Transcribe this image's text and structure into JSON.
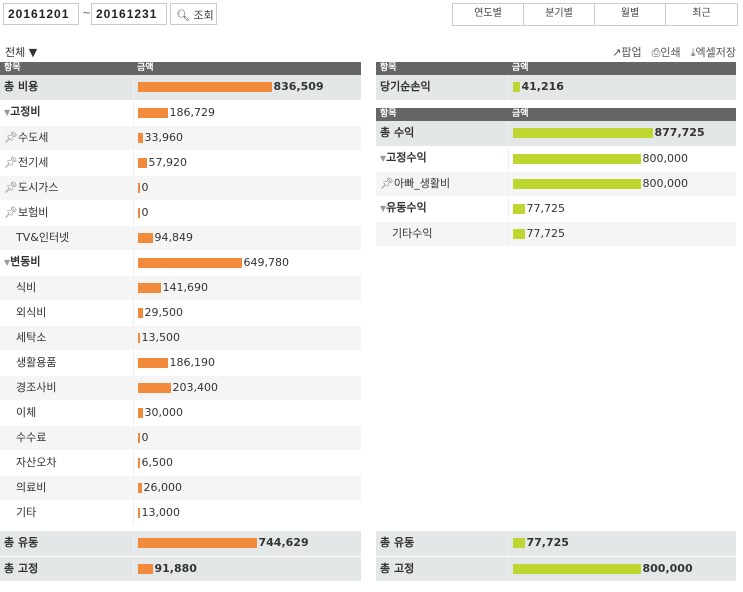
{
  "search": {
    "start": "20161201",
    "sep": "~",
    "end": "20161231",
    "button": "조회"
  },
  "period_tabs": [
    "연도별",
    "분기별",
    "월별",
    "최근"
  ],
  "filter": "전체 ▼",
  "tools": [
    "팝업",
    "인쇄",
    "엑셀저장"
  ],
  "headers": {
    "item": "항목",
    "amount": "금액"
  },
  "colors": {
    "expense": "#f28a3b",
    "income": "#bfd630"
  },
  "expense": {
    "rows": [
      {
        "label": "총 비용",
        "value": 836509,
        "text": "836,509",
        "type": "total"
      },
      {
        "label": "고정비",
        "value": 186729,
        "text": "186,729",
        "type": "group"
      },
      {
        "label": "수도세",
        "value": 33960,
        "text": "33,960",
        "type": "pin"
      },
      {
        "label": "전기세",
        "value": 57920,
        "text": "57,920",
        "type": "pin"
      },
      {
        "label": "도시가스",
        "value": 0,
        "text": "0",
        "type": "pin"
      },
      {
        "label": "보험비",
        "value": 0,
        "text": "0",
        "type": "pin"
      },
      {
        "label": "TV&인터넷",
        "value": 94849,
        "text": "94,849",
        "type": "item"
      },
      {
        "label": "변동비",
        "value": 649780,
        "text": "649,780",
        "type": "group"
      },
      {
        "label": "식비",
        "value": 141690,
        "text": "141,690",
        "type": "item"
      },
      {
        "label": "외식비",
        "value": 29500,
        "text": "29,500",
        "type": "item"
      },
      {
        "label": "세탁소",
        "value": 13500,
        "text": "13,500",
        "type": "item"
      },
      {
        "label": "생활용품",
        "value": 186190,
        "text": "186,190",
        "type": "item"
      },
      {
        "label": "경조사비",
        "value": 203400,
        "text": "203,400",
        "type": "item"
      },
      {
        "label": "이체",
        "value": 30000,
        "text": "30,000",
        "type": "item"
      },
      {
        "label": "수수료",
        "value": 0,
        "text": "0",
        "type": "item"
      },
      {
        "label": "자산오차",
        "value": 6500,
        "text": "6,500",
        "type": "item"
      },
      {
        "label": "의료비",
        "value": 26000,
        "text": "26,000",
        "type": "item"
      },
      {
        "label": "기타",
        "value": 13000,
        "text": "13,000",
        "type": "item"
      }
    ],
    "summary": [
      {
        "label": "총 유동",
        "value": 744629,
        "text": "744,629"
      },
      {
        "label": "총 고정",
        "value": 91880,
        "text": "91,880"
      }
    ]
  },
  "net": {
    "label": "당기순손익",
    "value": 41216,
    "text": "41,216"
  },
  "income": {
    "rows": [
      {
        "label": "총 수익",
        "value": 877725,
        "text": "877,725",
        "type": "total"
      },
      {
        "label": "고정수익",
        "value": 800000,
        "text": "800,000",
        "type": "group"
      },
      {
        "label": "아빠_생활비",
        "value": 800000,
        "text": "800,000",
        "type": "pin"
      },
      {
        "label": "유동수익",
        "value": 77725,
        "text": "77,725",
        "type": "group"
      },
      {
        "label": "기타수익",
        "value": 77725,
        "text": "77,725",
        "type": "item"
      }
    ],
    "summary": [
      {
        "label": "총 유동",
        "value": 77725,
        "text": "77,725"
      },
      {
        "label": "총 고정",
        "value": 800000,
        "text": "800,000"
      }
    ]
  }
}
